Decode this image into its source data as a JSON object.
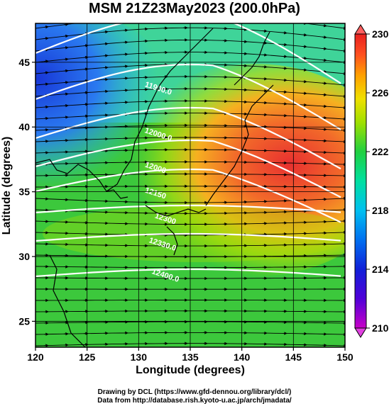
{
  "title": "MSM 21Z23May2023 (200.0hPa)",
  "x_axis": {
    "label": "Longitude (degrees)",
    "ticks": [
      "120",
      "125",
      "130",
      "135",
      "140",
      "145",
      "150"
    ],
    "range": [
      120,
      150
    ]
  },
  "y_axis": {
    "label": "Latitude  (degrees)",
    "ticks": [
      "25",
      "30",
      "35",
      "40",
      "45"
    ],
    "range": [
      23,
      48
    ]
  },
  "colorbar": {
    "ticks": [
      "210",
      "214",
      "218",
      "222",
      "226",
      "230"
    ],
    "range": [
      210,
      230
    ],
    "colors": [
      "#c800c8",
      "#2020d0",
      "#00a0ff",
      "#00e0e0",
      "#20c840",
      "#a0e000",
      "#f0e000",
      "#ffa000",
      "#ff5020",
      "#e82020"
    ]
  },
  "contour_labels": [
    "11900.0",
    "12000.0",
    "12000",
    "12150",
    "12300",
    "12330.0",
    "12400.0"
  ],
  "credits": {
    "line1": "Drawing by DCL (https://www.gfd-dennou.org/library/dcl/)",
    "line2": "Data from http://database.rish.kyoto-u.ac.jp/arch/jmadata/"
  }
}
